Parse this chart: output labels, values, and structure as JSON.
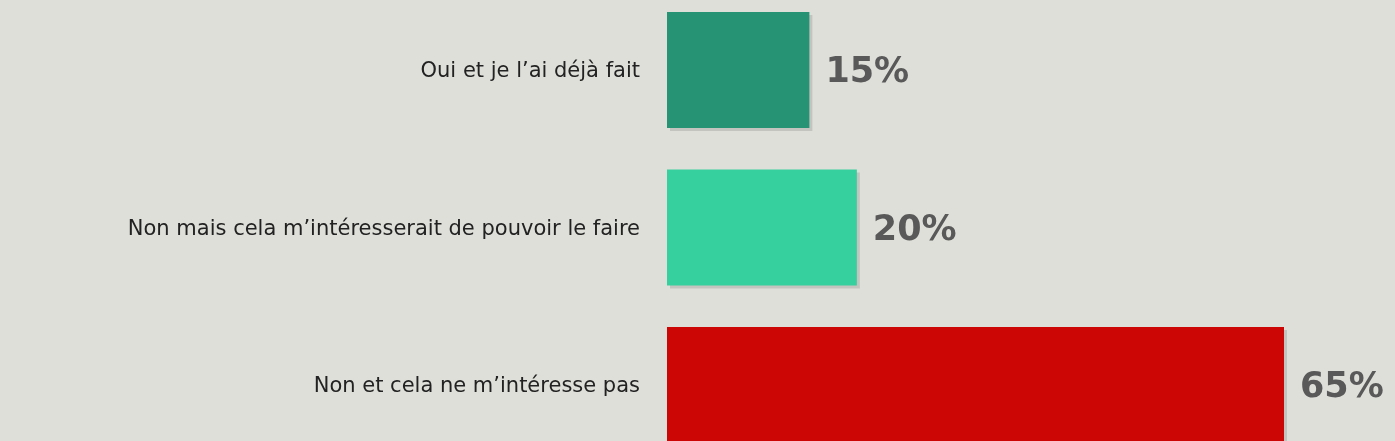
{
  "chart_data": {
    "type": "bar",
    "orientation": "horizontal",
    "categories": [
      "Oui et je l’ai déjà fait",
      "Non mais cela m’intéresserait de pouvoir le faire",
      "Non et cela ne m’intéresse pas"
    ],
    "values": [
      15,
      20,
      65
    ],
    "colors": [
      "#269474",
      "#36cf9e",
      "#cc0505"
    ],
    "value_labels": [
      "15%",
      "20%",
      "65%"
    ]
  }
}
